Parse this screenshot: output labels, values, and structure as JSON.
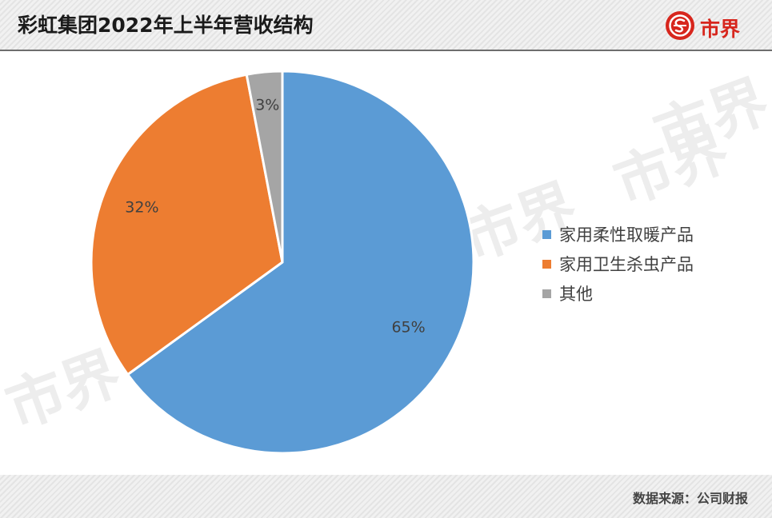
{
  "header": {
    "title": "彩虹集团2022年上半年营收结构",
    "logo_text": "市界",
    "logo_icon": "shijie-logo-icon",
    "logo_color": "#d7261d"
  },
  "watermark": {
    "text": "市界"
  },
  "chart_data": {
    "type": "pie",
    "title": "彩虹集团2022年上半年营收结构",
    "categories": [
      "家用柔性取暖产品",
      "家用卫生杀虫产品",
      "其他"
    ],
    "values": [
      65,
      32,
      3
    ],
    "labels": [
      "65%",
      "32%",
      "3%"
    ],
    "colors": [
      "#5b9bd5",
      "#ed7d31",
      "#a5a5a5"
    ],
    "legend_position": "right"
  },
  "footer": {
    "source": "数据来源：公司财报"
  }
}
